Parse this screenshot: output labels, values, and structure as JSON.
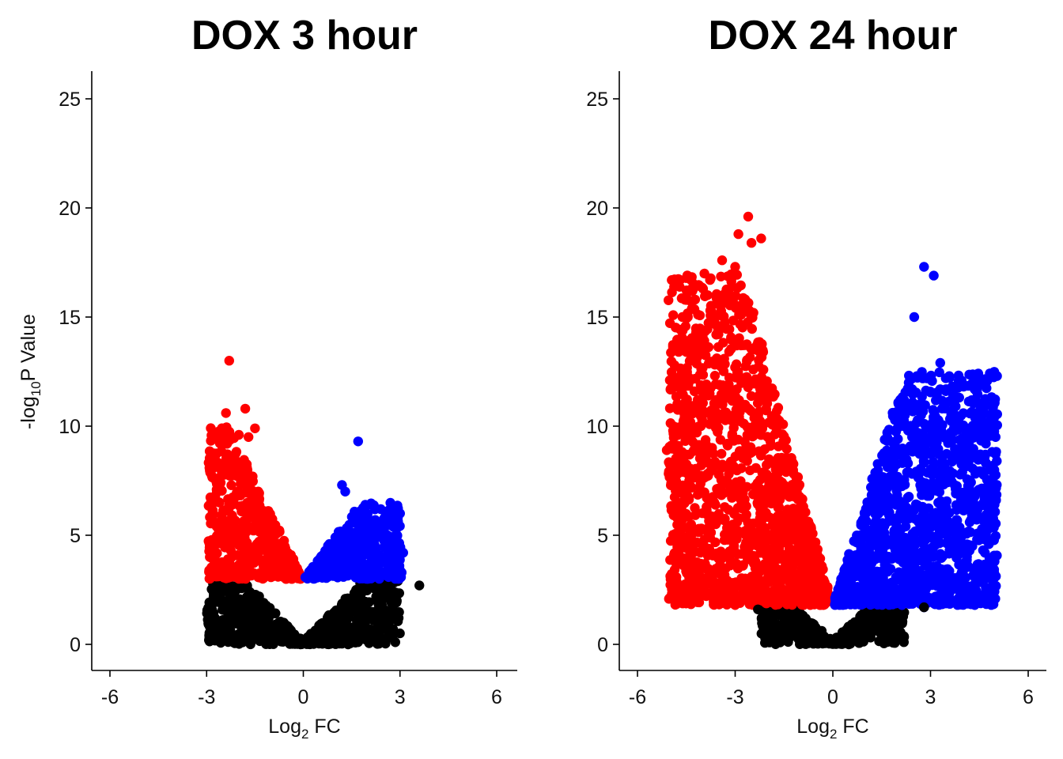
{
  "colors": {
    "down": "#ff0000",
    "up": "#0000ff",
    "ns": "#000000"
  },
  "chart_data": [
    {
      "type": "scatter",
      "subtype": "volcano",
      "title": "DOX 3 hour",
      "xlabel": {
        "base": "Log",
        "sub": "2",
        "rest": " FC"
      },
      "ylabel": {
        "base": "-log",
        "sub": "10",
        "rest": "P Value"
      },
      "xlim": [
        -6.0,
        6.0
      ],
      "ylim": [
        -1.2,
        26.2
      ],
      "xticks": [
        -6,
        -3,
        0,
        3,
        6
      ],
      "yticks": [
        0,
        5,
        10,
        15,
        20,
        25
      ],
      "significance_threshold": 3.0,
      "series": [
        {
          "key": "down",
          "x_range": [
            -2.9,
            0
          ],
          "highlights": [
            [
              -2.3,
              13.0
            ],
            [
              -2.4,
              10.6
            ],
            [
              -1.8,
              10.8
            ],
            [
              -1.5,
              9.9
            ],
            [
              -1.7,
              9.5
            ],
            [
              -2.0,
              9.6
            ],
            [
              -2.8,
              6.0
            ],
            [
              -2.7,
              5.5
            ],
            [
              -2.9,
              4.5
            ],
            [
              -2.6,
              6.5
            ]
          ]
        },
        {
          "key": "up",
          "x_range": [
            0,
            3.0
          ],
          "highlights": [
            [
              1.7,
              9.3
            ],
            [
              1.2,
              7.3
            ],
            [
              1.3,
              7.0
            ],
            [
              3.0,
              6.0
            ],
            [
              2.9,
              5.0
            ],
            [
              2.7,
              4.6
            ],
            [
              3.1,
              4.2
            ],
            [
              3.0,
              3.3
            ]
          ]
        },
        {
          "key": "ns",
          "x_range": [
            -2.9,
            3.1
          ],
          "highlights": [
            [
              3.6,
              2.7
            ],
            [
              2.9,
              2.0
            ],
            [
              2.5,
              1.6
            ]
          ]
        }
      ]
    },
    {
      "type": "scatter",
      "subtype": "volcano",
      "title": "DOX 24 hour",
      "xlabel": {
        "base": "Log",
        "sub": "2",
        "rest": " FC"
      },
      "ylabel": {
        "base": "",
        "sub": "",
        "rest": ""
      },
      "xlim": [
        -6.0,
        6.0
      ],
      "ylim": [
        -1.2,
        26.2
      ],
      "xticks": [
        -6,
        -3,
        0,
        3,
        6
      ],
      "yticks": [
        0,
        5,
        10,
        15,
        20,
        25
      ],
      "significance_threshold": 1.8,
      "series": [
        {
          "key": "down",
          "x_range": [
            -5.0,
            0
          ],
          "highlights": [
            [
              -2.6,
              19.6
            ],
            [
              -2.9,
              18.8
            ],
            [
              -2.2,
              18.6
            ],
            [
              -2.5,
              18.4
            ],
            [
              -3.4,
              17.6
            ],
            [
              -3.0,
              17.3
            ],
            [
              -5.1,
              8.9
            ],
            [
              -4.9,
              7.6
            ],
            [
              -4.6,
              6.9
            ],
            [
              -4.6,
              12.0
            ],
            [
              -4.5,
              13.4
            ],
            [
              -3.0,
              1.8
            ]
          ]
        },
        {
          "key": "up",
          "x_range": [
            0,
            5.0
          ],
          "highlights": [
            [
              2.8,
              17.3
            ],
            [
              3.1,
              16.9
            ],
            [
              2.5,
              15.0
            ],
            [
              3.3,
              12.9
            ],
            [
              3.7,
              11.4
            ],
            [
              5.0,
              9.5
            ],
            [
              4.7,
              9.2
            ],
            [
              4.8,
              6.8
            ],
            [
              4.4,
              3.4
            ],
            [
              2.8,
              1.7
            ]
          ]
        },
        {
          "key": "ns",
          "x_range": [
            -2.2,
            2.2
          ],
          "highlights": [
            [
              2.8,
              1.7
            ],
            [
              -2.3,
              1.6
            ]
          ]
        }
      ]
    }
  ]
}
